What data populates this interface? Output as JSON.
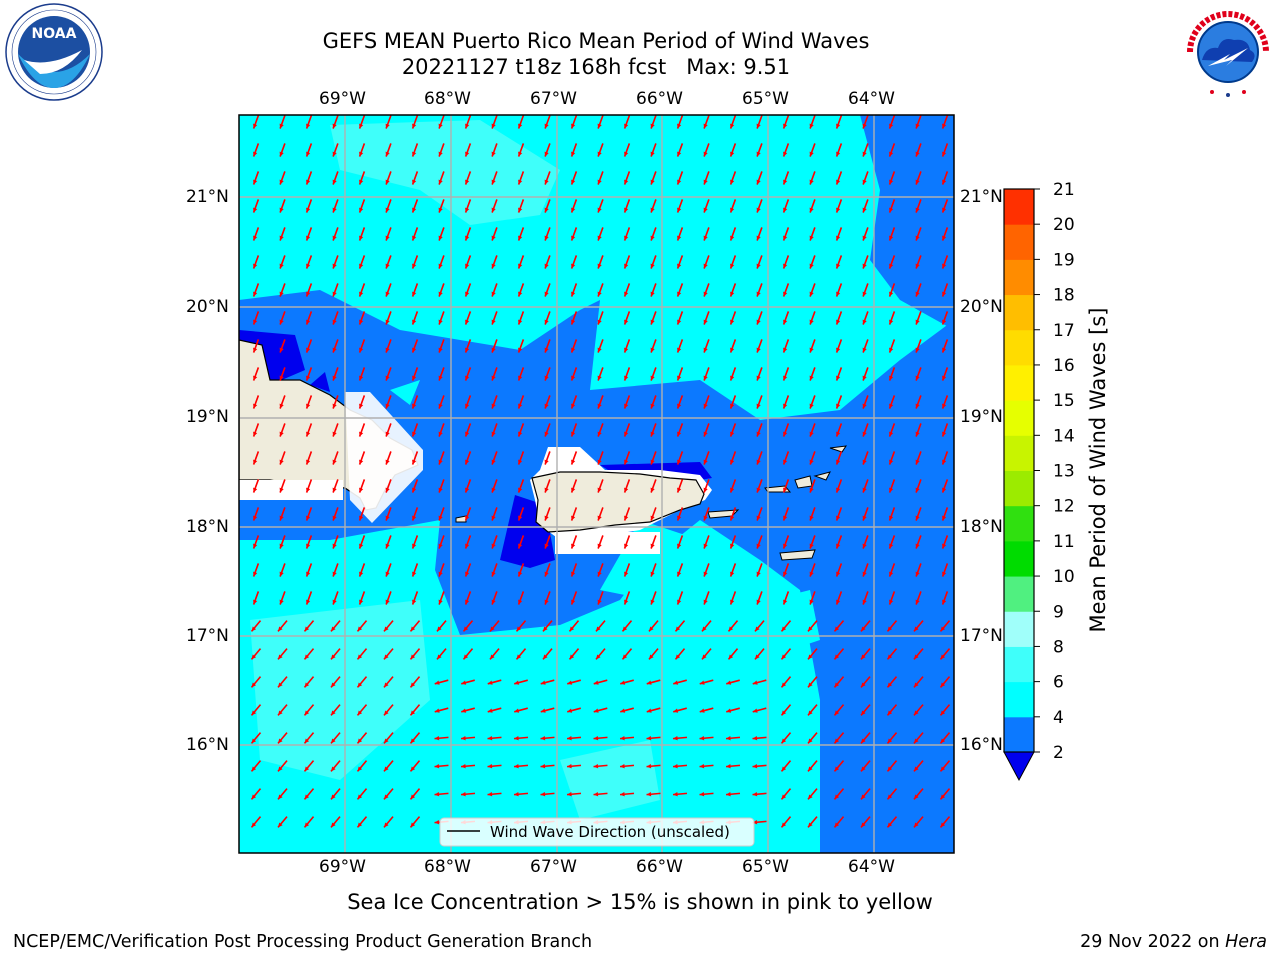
{
  "title": {
    "line1": "GEFS MEAN Puerto Rico Mean Period of Wind Waves",
    "line2": "20221127 t18z 168h fcst   Max: 9.51"
  },
  "logos": {
    "left": {
      "text": "NOAA",
      "ring_text": "NATIONAL OCEANIC AND ATMOSPHERIC ADMINISTRATION · U.S. DEPARTMENT OF COMMERCE"
    },
    "right": {
      "ring_text": "NATIONAL WEATHER SERVICE"
    }
  },
  "map": {
    "lon_ticks": [
      "69°W",
      "68°W",
      "67°W",
      "66°W",
      "65°W",
      "64°W"
    ],
    "lat_ticks": [
      "21°N",
      "20°N",
      "19°N",
      "18°N",
      "17°N",
      "16°N"
    ],
    "colors": {
      "land": "#efecdc",
      "coast": "#000000",
      "arrow": "#ff0000",
      "grid": "#b0b0b0",
      "cyan": "#00ffff",
      "light_cyan": "#3ffffa",
      "blue": "#0c79ff",
      "dark_blue": "#0000ee"
    },
    "legend": {
      "label": "Wind Wave Direction (unscaled)"
    }
  },
  "colorbar": {
    "label": "Mean Period of Wind Waves [s]",
    "ticks": [
      "2",
      "4",
      "6",
      "8",
      "9",
      "10",
      "11",
      "12",
      "13",
      "14",
      "15",
      "16",
      "17",
      "18",
      "19",
      "20",
      "21"
    ],
    "colors": [
      "#0c79ff",
      "#00ffff",
      "#3ffffa",
      "#a0fffa",
      "#50f080",
      "#00dc00",
      "#30e010",
      "#9ceb00",
      "#c8f400",
      "#e6ff00",
      "#fff000",
      "#ffdc00",
      "#ffbe00",
      "#ff8c00",
      "#ff6400",
      "#ff3000"
    ],
    "under_color": "#0000ee"
  },
  "caption": "Sea Ice Concentration > 15% is shown in pink to yellow",
  "footer": {
    "left": "NCEP/EMC/Verification Post Processing Product Generation Branch",
    "right_date": "29 Nov 2022 on ",
    "right_host": "Hera"
  }
}
